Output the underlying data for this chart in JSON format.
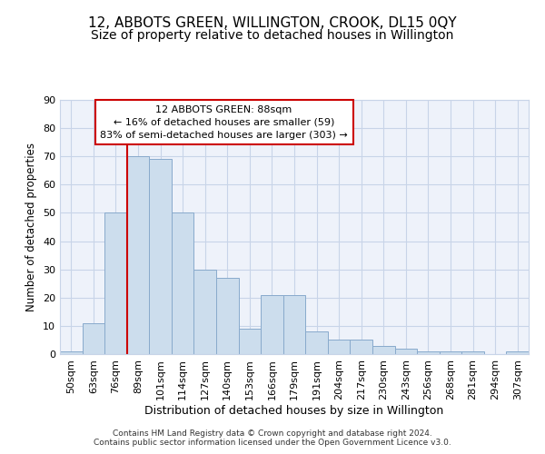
{
  "title": "12, ABBOTS GREEN, WILLINGTON, CROOK, DL15 0QY",
  "subtitle": "Size of property relative to detached houses in Willington",
  "xlabel": "Distribution of detached houses by size in Willington",
  "ylabel": "Number of detached properties",
  "bar_labels": [
    "50sqm",
    "63sqm",
    "76sqm",
    "89sqm",
    "101sqm",
    "114sqm",
    "127sqm",
    "140sqm",
    "153sqm",
    "166sqm",
    "179sqm",
    "191sqm",
    "204sqm",
    "217sqm",
    "230sqm",
    "243sqm",
    "256sqm",
    "268sqm",
    "281sqm",
    "294sqm",
    "307sqm"
  ],
  "bar_values": [
    1,
    11,
    50,
    70,
    69,
    50,
    30,
    27,
    9,
    21,
    21,
    8,
    5,
    5,
    3,
    2,
    1,
    1,
    1,
    0,
    1
  ],
  "bar_color": "#ccdded",
  "bar_edgecolor": "#88aacc",
  "vline_x_index": 3,
  "vline_color": "#cc0000",
  "annotation_text": "12 ABBOTS GREEN: 88sqm\n← 16% of detached houses are smaller (59)\n83% of semi-detached houses are larger (303) →",
  "annotation_box_color": "#ffffff",
  "annotation_box_edgecolor": "#cc0000",
  "ylim": [
    0,
    90
  ],
  "yticks": [
    0,
    10,
    20,
    30,
    40,
    50,
    60,
    70,
    80,
    90
  ],
  "grid_color": "#c8d4e8",
  "bg_color": "#eef2fa",
  "footer_text": "Contains HM Land Registry data © Crown copyright and database right 2024.\nContains public sector information licensed under the Open Government Licence v3.0.",
  "title_fontsize": 11,
  "subtitle_fontsize": 10,
  "xlabel_fontsize": 9,
  "ylabel_fontsize": 8.5,
  "tick_fontsize": 8,
  "annotation_fontsize": 8,
  "footer_fontsize": 6.5
}
